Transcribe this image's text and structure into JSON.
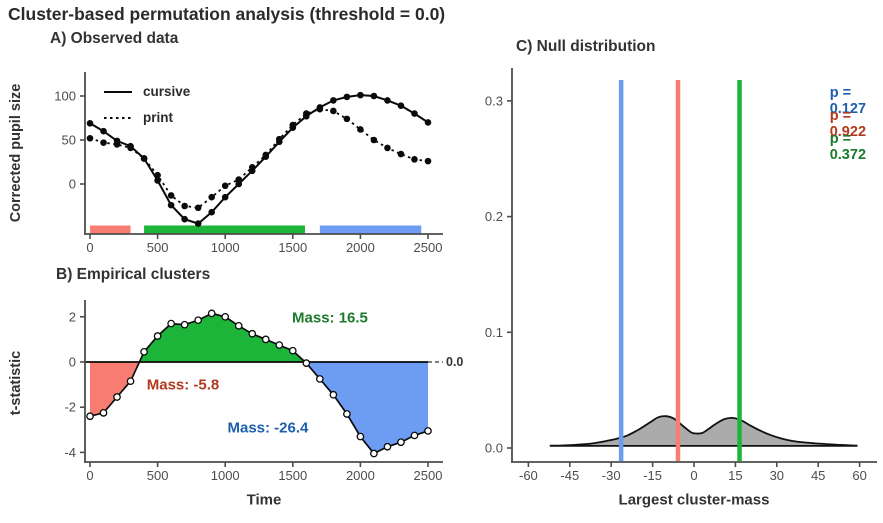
{
  "title": "Cluster-based permutation analysis (threshold = 0.0)",
  "colors": {
    "red": "#F87C72",
    "green": "#1DB43A",
    "blue": "#6D9CF3",
    "red_text": "#B23A1E",
    "green_text": "#1B7A2B",
    "blue_text": "#1D5FAD",
    "axis": "#4D4D4D",
    "tick_text": "#4D4D4D",
    "series_line": "#0A0A0A",
    "density_fill": "#A2A2A2",
    "density_stroke": "#111111"
  },
  "chart_data": [
    {
      "id": "A",
      "type": "line",
      "title": "A) Observed data",
      "xlabel": "",
      "ylabel": "Corrected pupil size",
      "x": [
        0,
        100,
        200,
        300,
        400,
        500,
        600,
        700,
        800,
        900,
        1000,
        1100,
        1200,
        1300,
        1400,
        1500,
        1600,
        1700,
        1800,
        1900,
        2000,
        2100,
        2200,
        2300,
        2400,
        2500
      ],
      "series": [
        {
          "name": "cursive",
          "style": "solid",
          "values": [
            69,
            60,
            49,
            43,
            29,
            4,
            -24,
            -40,
            -45,
            -32,
            -15,
            0,
            15,
            31,
            48,
            64,
            77,
            87,
            95,
            99,
            101,
            100,
            95,
            89,
            80,
            70
          ]
        },
        {
          "name": "print",
          "style": "dashed",
          "values": [
            52,
            47,
            45,
            41,
            29,
            10,
            -13,
            -25,
            -27,
            -15,
            -2,
            5,
            19,
            33,
            51,
            67,
            80,
            85,
            83,
            74,
            62,
            50,
            41,
            34,
            28,
            26
          ]
        }
      ],
      "xticks": [
        0,
        500,
        1000,
        1500,
        2000,
        2500
      ],
      "yticks": [
        0,
        50,
        100
      ],
      "ylim": [
        -55,
        115
      ],
      "cluster_bars": [
        {
          "color_key": "red",
          "from": 0,
          "to": 300
        },
        {
          "color_key": "green",
          "from": 400,
          "to": 1590
        },
        {
          "color_key": "blue",
          "from": 1700,
          "to": 2450
        }
      ]
    },
    {
      "id": "B",
      "type": "line",
      "title": "B) Empirical clusters",
      "xlabel": "Time",
      "ylabel": "t-statistic",
      "threshold": 0.0,
      "threshold_label": "0.0",
      "x": [
        0,
        100,
        200,
        300,
        400,
        500,
        600,
        700,
        800,
        900,
        1000,
        1100,
        1200,
        1300,
        1400,
        1500,
        1600,
        1700,
        1800,
        1900,
        2000,
        2100,
        2200,
        2300,
        2400,
        2500
      ],
      "values": [
        -2.4,
        -2.25,
        -1.55,
        -0.85,
        0.45,
        1.15,
        1.7,
        1.65,
        1.85,
        2.15,
        2.0,
        1.6,
        1.25,
        1.0,
        0.75,
        0.5,
        -0.05,
        -0.75,
        -1.45,
        -2.3,
        -3.3,
        -4.05,
        -3.75,
        -3.55,
        -3.25,
        -3.05
      ],
      "xticks": [
        0,
        500,
        1000,
        1500,
        2000,
        2500
      ],
      "yticks": [
        -4,
        -2,
        0,
        2
      ],
      "ylim": [
        -4.6,
        2.5
      ],
      "clusters": [
        {
          "color_key": "red",
          "from": 0,
          "to": 365,
          "mass": -5.8,
          "label": "Mass: -5.8",
          "label_t": 688,
          "label_v": -1.02
        },
        {
          "color_key": "green",
          "from": 365,
          "to": 1591,
          "mass": 16.5,
          "label": "Mass: 16.5",
          "label_t": 1775,
          "label_v": 1.95
        },
        {
          "color_key": "blue",
          "from": 1591,
          "to": 2500,
          "mass": -26.4,
          "label": "Mass: -26.4",
          "label_t": 1316,
          "label_v": -2.92
        }
      ]
    },
    {
      "id": "C",
      "type": "area",
      "title": "C) Null distribution",
      "xlabel": "Largest cluster-mass",
      "ylabel": "",
      "xticks": [
        -60,
        -45,
        -30,
        -15,
        0,
        15,
        30,
        45,
        60
      ],
      "yticks": [
        0.0,
        0.1,
        0.2,
        0.3
      ],
      "xlim": [
        -65,
        66
      ],
      "ylim": [
        0,
        0.31
      ],
      "density": {
        "x": [
          -52,
          -48,
          -44,
          -40,
          -36,
          -32,
          -28,
          -24,
          -20,
          -16,
          -13,
          -10,
          -7,
          -4,
          -1,
          1,
          3,
          5,
          8,
          11,
          14,
          17,
          20,
          24,
          28,
          32,
          36,
          40,
          44,
          48,
          52,
          56,
          59
        ],
        "y": [
          0.002,
          0.0022,
          0.0026,
          0.0032,
          0.0042,
          0.006,
          0.008,
          0.011,
          0.016,
          0.022,
          0.0265,
          0.0275,
          0.025,
          0.019,
          0.0135,
          0.0125,
          0.013,
          0.016,
          0.021,
          0.025,
          0.026,
          0.024,
          0.02,
          0.015,
          0.011,
          0.008,
          0.006,
          0.0048,
          0.004,
          0.0034,
          0.0028,
          0.0023,
          0.002
        ],
        "baseline": 0.0018
      },
      "observed": [
        {
          "color_key": "blue",
          "value": -26.4,
          "p_label": "p = 0.127"
        },
        {
          "color_key": "red",
          "value": -5.8,
          "p_label": "p = 0.922"
        },
        {
          "color_key": "green",
          "value": 16.5,
          "p_label": "p = 0.372"
        }
      ]
    }
  ]
}
